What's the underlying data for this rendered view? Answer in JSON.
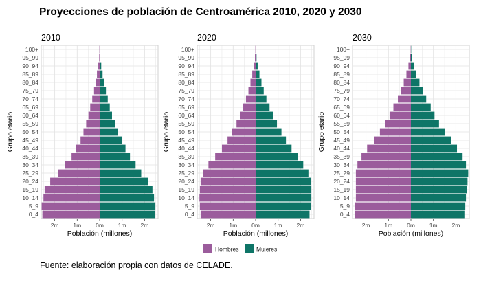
{
  "title": "Proyecciones de población de Centroamérica 2010, 2020 y  2030",
  "caption": "Fuente: elaboración propia con datos de CELADE.",
  "colors": {
    "hombres": "#9b5c9c",
    "mujeres": "#0e7567",
    "grid": "#e3e3e3",
    "panel_border": "#d0d0d0"
  },
  "chart_data": {
    "type": "bar",
    "orientation": "horizontal",
    "categories": [
      "0_4",
      "5_9",
      "10_14",
      "15_19",
      "20_24",
      "25_29",
      "30_34",
      "35_39",
      "40_44",
      "45_49",
      "50_54",
      "55_59",
      "60_64",
      "65_69",
      "70_74",
      "75_79",
      "80_84",
      "85_89",
      "90_94",
      "95_99",
      "100+"
    ],
    "xlabel": "Población (millones)",
    "ylabel": "Grupo etario",
    "x_ticks": [
      -2,
      -1,
      0,
      1,
      2
    ],
    "x_tick_labels": [
      "2m",
      "1m",
      "0m",
      "1m",
      "2m"
    ],
    "xlim": [
      -2.6,
      2.6
    ],
    "legend": {
      "position": "bottom",
      "entries": [
        "Hombres",
        "Mujeres"
      ]
    },
    "grid": true,
    "panels": [
      {
        "title": "2010",
        "series": [
          {
            "name": "Hombres",
            "values": [
              -2.55,
              -2.58,
              -2.5,
              -2.45,
              -2.2,
              -1.85,
              -1.55,
              -1.25,
              -1.05,
              -0.85,
              -0.72,
              -0.6,
              -0.5,
              -0.42,
              -0.33,
              -0.25,
              -0.18,
              -0.12,
              -0.06,
              -0.02,
              -0.01
            ]
          },
          {
            "name": "Mujeres",
            "values": [
              2.45,
              2.48,
              2.42,
              2.35,
              2.15,
              1.85,
              1.6,
              1.35,
              1.15,
              0.98,
              0.82,
              0.68,
              0.55,
              0.45,
              0.36,
              0.28,
              0.2,
              0.13,
              0.07,
              0.03,
              0.01
            ]
          }
        ]
      },
      {
        "title": "2020",
        "series": [
          {
            "name": "Hombres",
            "values": [
              -2.45,
              -2.48,
              -2.5,
              -2.48,
              -2.45,
              -2.35,
              -2.1,
              -1.8,
              -1.5,
              -1.25,
              -1.05,
              -0.85,
              -0.68,
              -0.55,
              -0.43,
              -0.32,
              -0.23,
              -0.15,
              -0.08,
              -0.03,
              -0.01
            ]
          },
          {
            "name": "Mujeres",
            "values": [
              2.4,
              2.45,
              2.48,
              2.48,
              2.45,
              2.35,
              2.12,
              1.88,
              1.6,
              1.35,
              1.15,
              0.95,
              0.78,
              0.62,
              0.48,
              0.36,
              0.26,
              0.17,
              0.09,
              0.04,
              0.01
            ]
          }
        ]
      },
      {
        "title": "2030",
        "series": [
          {
            "name": "Hombres",
            "values": [
              -2.5,
              -2.48,
              -2.45,
              -2.45,
              -2.45,
              -2.45,
              -2.38,
              -2.2,
              -1.95,
              -1.65,
              -1.38,
              -1.15,
              -0.95,
              -0.78,
              -0.58,
              -0.45,
              -0.32,
              -0.2,
              -0.11,
              -0.04,
              -0.01
            ]
          },
          {
            "name": "Mujeres",
            "values": [
              2.38,
              2.42,
              2.45,
              2.5,
              2.52,
              2.55,
              2.45,
              2.3,
              2.05,
              1.78,
              1.5,
              1.25,
              1.05,
              0.88,
              0.68,
              0.52,
              0.38,
              0.24,
              0.13,
              0.05,
              0.01
            ]
          }
        ]
      }
    ]
  }
}
